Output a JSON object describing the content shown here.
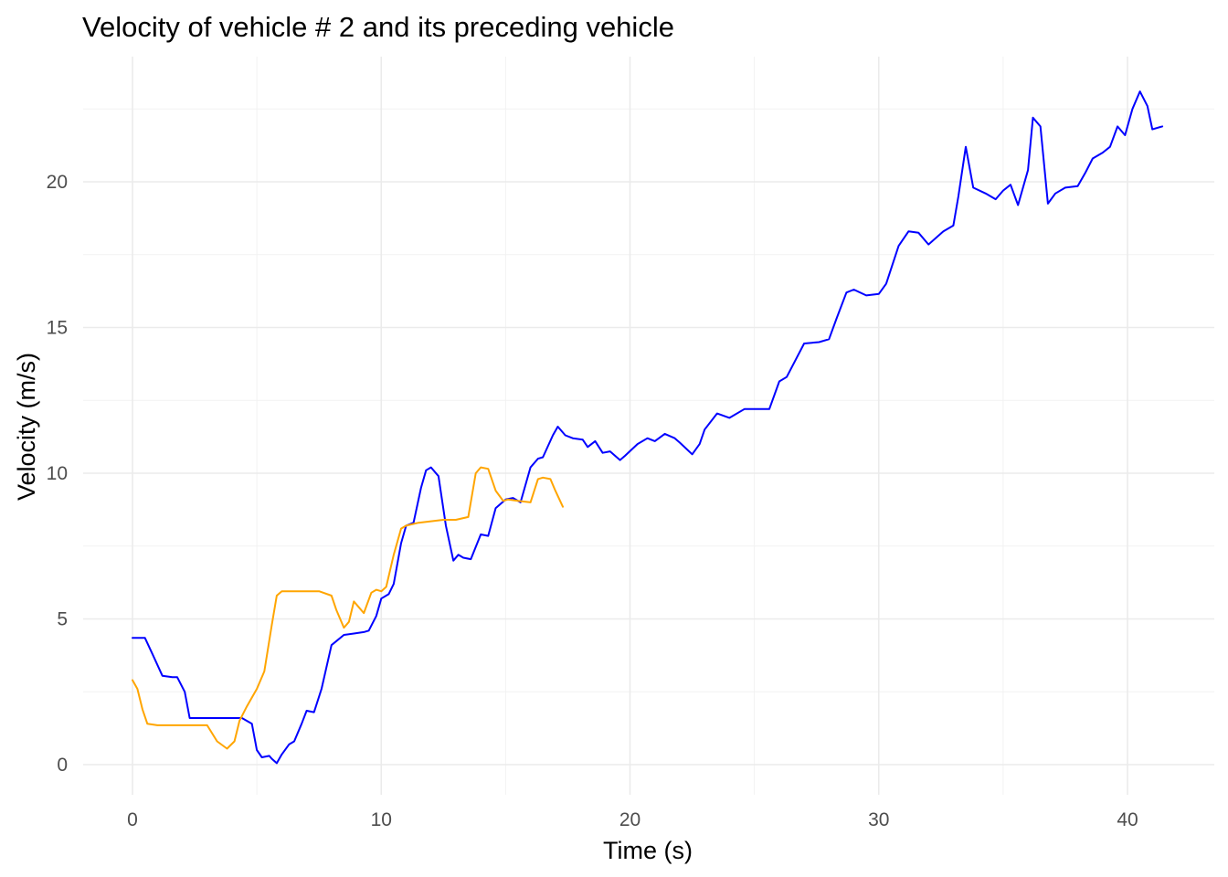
{
  "chart_data": {
    "type": "line",
    "title": "Velocity of vehicle # 2 and its preceding vehicle",
    "xlabel": "Time (s)",
    "ylabel": "Velocity (m/s)",
    "xlim": [
      -2,
      43
    ],
    "ylim": [
      -1,
      24
    ],
    "x_ticks": [
      0,
      10,
      20,
      30,
      40
    ],
    "y_ticks": [
      0,
      5,
      10,
      15,
      20
    ],
    "x_ticks_labels": [
      "0",
      "10",
      "20",
      "30",
      "40"
    ],
    "y_ticks_labels": [
      "0",
      "5",
      "10",
      "15",
      "20"
    ],
    "grid": true,
    "legend": "none",
    "series": [
      {
        "color": "#0000ff",
        "x": [
          0,
          0.5,
          0.8,
          1.2,
          1.6,
          1.8,
          2.1,
          2.3,
          3.0,
          4.0,
          4.4,
          4.8,
          5.0,
          5.2,
          5.5,
          5.6,
          5.8,
          6.0,
          6.3,
          6.5,
          6.8,
          7.0,
          7.3,
          7.6,
          8.0,
          8.5,
          8.9,
          9.3,
          9.5,
          9.8,
          10.0,
          10.3,
          10.5,
          10.8,
          11.0,
          11.3,
          11.6,
          11.8,
          12.0,
          12.3,
          12.6,
          12.9,
          13.1,
          13.3,
          13.6,
          14.0,
          14.3,
          14.6,
          15.0,
          15.3,
          15.6,
          16.0,
          16.3,
          16.5,
          16.9,
          17.1,
          17.4,
          17.7,
          18.1,
          18.3,
          18.6,
          18.9,
          19.2,
          19.6,
          19.8,
          20.3,
          20.7,
          21.0,
          21.4,
          21.8,
          22.0,
          22.5,
          22.8,
          23.0,
          23.5,
          24.0,
          24.6,
          25.0,
          25.3,
          25.6,
          26.0,
          26.3,
          27.0,
          27.6,
          28.0,
          28.3,
          28.7,
          29.0,
          29.5,
          30.0,
          30.3,
          30.8,
          31.2,
          31.6,
          32.0,
          32.6,
          33.0,
          33.2,
          33.5,
          33.8,
          34.3,
          34.7,
          35.0,
          35.3,
          35.6,
          36.0,
          36.2,
          36.5,
          36.8,
          37.1,
          37.5,
          38.0,
          38.3,
          38.6,
          39.0,
          39.3,
          39.6,
          39.9,
          40.2,
          40.5,
          40.8,
          41.0,
          41.4
        ],
        "values": [
          4.35,
          4.35,
          3.8,
          3.05,
          3.0,
          3.0,
          2.5,
          1.6,
          1.6,
          1.6,
          1.6,
          1.4,
          0.5,
          0.25,
          0.3,
          0.2,
          0.05,
          0.35,
          0.7,
          0.8,
          1.4,
          1.85,
          1.8,
          2.6,
          4.1,
          4.45,
          4.5,
          4.55,
          4.6,
          5.1,
          5.7,
          5.85,
          6.2,
          7.6,
          8.2,
          8.3,
          9.5,
          10.1,
          10.2,
          9.9,
          8.2,
          7.0,
          7.2,
          7.1,
          7.05,
          7.9,
          7.85,
          8.8,
          9.1,
          9.15,
          9.0,
          10.2,
          10.5,
          10.55,
          11.3,
          11.6,
          11.3,
          11.2,
          11.15,
          10.9,
          11.1,
          10.7,
          10.75,
          10.45,
          10.6,
          11.0,
          11.2,
          11.1,
          11.35,
          11.2,
          11.05,
          10.65,
          11.0,
          11.5,
          12.05,
          11.9,
          12.2,
          12.2,
          12.2,
          12.2,
          13.15,
          13.3,
          14.45,
          14.5,
          14.6,
          15.3,
          16.2,
          16.3,
          16.1,
          16.15,
          16.5,
          17.8,
          18.3,
          18.25,
          17.85,
          18.3,
          18.5,
          19.5,
          21.2,
          19.8,
          19.6,
          19.4,
          19.7,
          19.9,
          19.2,
          20.4,
          22.2,
          21.9,
          19.25,
          19.6,
          19.8,
          19.85,
          20.3,
          20.8,
          21.0,
          21.2,
          21.9,
          21.6,
          22.5,
          23.1,
          22.6,
          21.8,
          21.9
        ],
        "name": ""
      },
      {
        "color": "#ffa500",
        "x": [
          0,
          0.2,
          0.4,
          0.6,
          1.0,
          2.0,
          3.0,
          3.4,
          3.8,
          4.1,
          4.3,
          4.6,
          5.0,
          5.3,
          5.6,
          5.8,
          6.0,
          6.5,
          7.0,
          7.5,
          8.0,
          8.2,
          8.5,
          8.7,
          8.9,
          9.1,
          9.3,
          9.6,
          9.8,
          10.0,
          10.2,
          10.5,
          10.8,
          11.0,
          11.5,
          12.0,
          12.5,
          13.0,
          13.5,
          13.8,
          14.0,
          14.3,
          14.6,
          14.9,
          15.1,
          15.5,
          16.0,
          16.3,
          16.5,
          16.8,
          17.0,
          17.3
        ],
        "values": [
          2.9,
          2.6,
          1.9,
          1.4,
          1.35,
          1.35,
          1.35,
          0.8,
          0.55,
          0.8,
          1.5,
          2.0,
          2.6,
          3.2,
          4.8,
          5.8,
          5.95,
          5.95,
          5.95,
          5.95,
          5.8,
          5.3,
          4.7,
          4.9,
          5.6,
          5.4,
          5.2,
          5.9,
          6.0,
          5.95,
          6.1,
          7.2,
          8.1,
          8.2,
          8.3,
          8.35,
          8.4,
          8.4,
          8.5,
          10.0,
          10.2,
          10.15,
          9.4,
          9.05,
          9.1,
          9.05,
          9.0,
          9.8,
          9.85,
          9.8,
          9.4,
          8.85
        ],
        "name": ""
      }
    ]
  }
}
